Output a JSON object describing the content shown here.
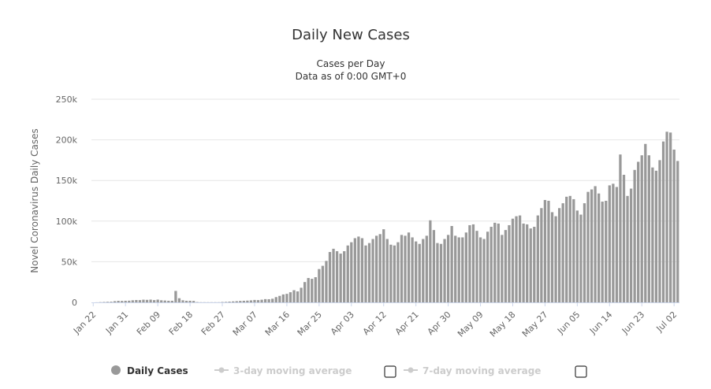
{
  "chart_data": {
    "type": "bar",
    "title": "Daily New Cases",
    "subtitle": [
      "Cases per Day",
      "Data as of 0:00 GMT+0"
    ],
    "ylabel": "Novel Coronavirus Daily Cases",
    "ylim": [
      0,
      250000
    ],
    "y_ticks": [
      {
        "value": 0,
        "label": "0"
      },
      {
        "value": 50000,
        "label": "50k"
      },
      {
        "value": 100000,
        "label": "100k"
      },
      {
        "value": 150000,
        "label": "150k"
      },
      {
        "value": 200000,
        "label": "200k"
      },
      {
        "value": 250000,
        "label": "250k"
      }
    ],
    "x_ticks": [
      {
        "index": 0,
        "label": "Jan 22"
      },
      {
        "index": 9,
        "label": "Jan 31"
      },
      {
        "index": 18,
        "label": "Feb 09"
      },
      {
        "index": 27,
        "label": "Feb 18"
      },
      {
        "index": 36,
        "label": "Feb 27"
      },
      {
        "index": 45,
        "label": "Mar 07"
      },
      {
        "index": 54,
        "label": "Mar 16"
      },
      {
        "index": 63,
        "label": "Mar 25"
      },
      {
        "index": 72,
        "label": "Apr 03"
      },
      {
        "index": 81,
        "label": "Apr 12"
      },
      {
        "index": 90,
        "label": "Apr 21"
      },
      {
        "index": 99,
        "label": "Apr 30"
      },
      {
        "index": 108,
        "label": "May 09"
      },
      {
        "index": 117,
        "label": "May 18"
      },
      {
        "index": 126,
        "label": "May 27"
      },
      {
        "index": 135,
        "label": "Jun 05"
      },
      {
        "index": 144,
        "label": "Jun 14"
      },
      {
        "index": 153,
        "label": "Jun 23"
      },
      {
        "index": 162,
        "label": "Jul 02"
      }
    ],
    "grid": true,
    "legend_position": "bottom-center",
    "series": [
      {
        "name": "Daily Cases",
        "color": "#999999",
        "values": [
          0,
          100,
          300,
          500,
          700,
          800,
          1500,
          1900,
          1800,
          2000,
          2100,
          2600,
          2900,
          2800,
          3300,
          3100,
          3400,
          2800,
          3400,
          2600,
          2300,
          2000,
          2000,
          14100,
          5100,
          2600,
          2000,
          2000,
          1800,
          400,
          200,
          200,
          200,
          200,
          200,
          200,
          500,
          600,
          900,
          1200,
          1500,
          1800,
          2000,
          2200,
          2500,
          3000,
          2800,
          3300,
          4000,
          3900,
          4500,
          6500,
          8000,
          9800,
          10500,
          12500,
          15000,
          13500,
          18000,
          25000,
          30000,
          29000,
          31000,
          41000,
          45000,
          51000,
          62000,
          66000,
          63000,
          60000,
          63000,
          70000,
          74000,
          79000,
          81000,
          79000,
          70000,
          73000,
          78000,
          82000,
          84000,
          90000,
          78000,
          71000,
          70000,
          74000,
          83000,
          82000,
          86000,
          80000,
          75000,
          72000,
          78000,
          82000,
          101000,
          89000,
          73000,
          72000,
          78000,
          83000,
          94000,
          82000,
          80000,
          80000,
          86000,
          95000,
          96000,
          88000,
          80000,
          78000,
          87000,
          93000,
          98000,
          97000,
          83000,
          89000,
          95000,
          103000,
          106000,
          107000,
          97000,
          96000,
          91000,
          93000,
          107000,
          116000,
          126000,
          125000,
          111000,
          106000,
          116000,
          122000,
          130000,
          131000,
          127000,
          113000,
          108000,
          122000,
          136000,
          139000,
          143000,
          134000,
          124000,
          125000,
          144000,
          146000,
          142000,
          182000,
          157000,
          131000,
          140000,
          163000,
          173000,
          181000,
          195000,
          181000,
          166000,
          162000,
          175000,
          198000,
          210000,
          209000,
          188000,
          174000
        ]
      },
      {
        "name": "3-day moving average",
        "color": "#cccccc",
        "visible": false
      },
      {
        "name": "7-day moving average",
        "color": "#cccccc",
        "visible": false
      }
    ]
  },
  "legend": {
    "items": [
      {
        "label": "Daily Cases",
        "color": "#999999",
        "active": true
      },
      {
        "label": "3-day moving average",
        "color": "#cccccc",
        "active": false
      },
      {
        "label": "7-day moving average",
        "color": "#cccccc",
        "active": false
      }
    ]
  }
}
